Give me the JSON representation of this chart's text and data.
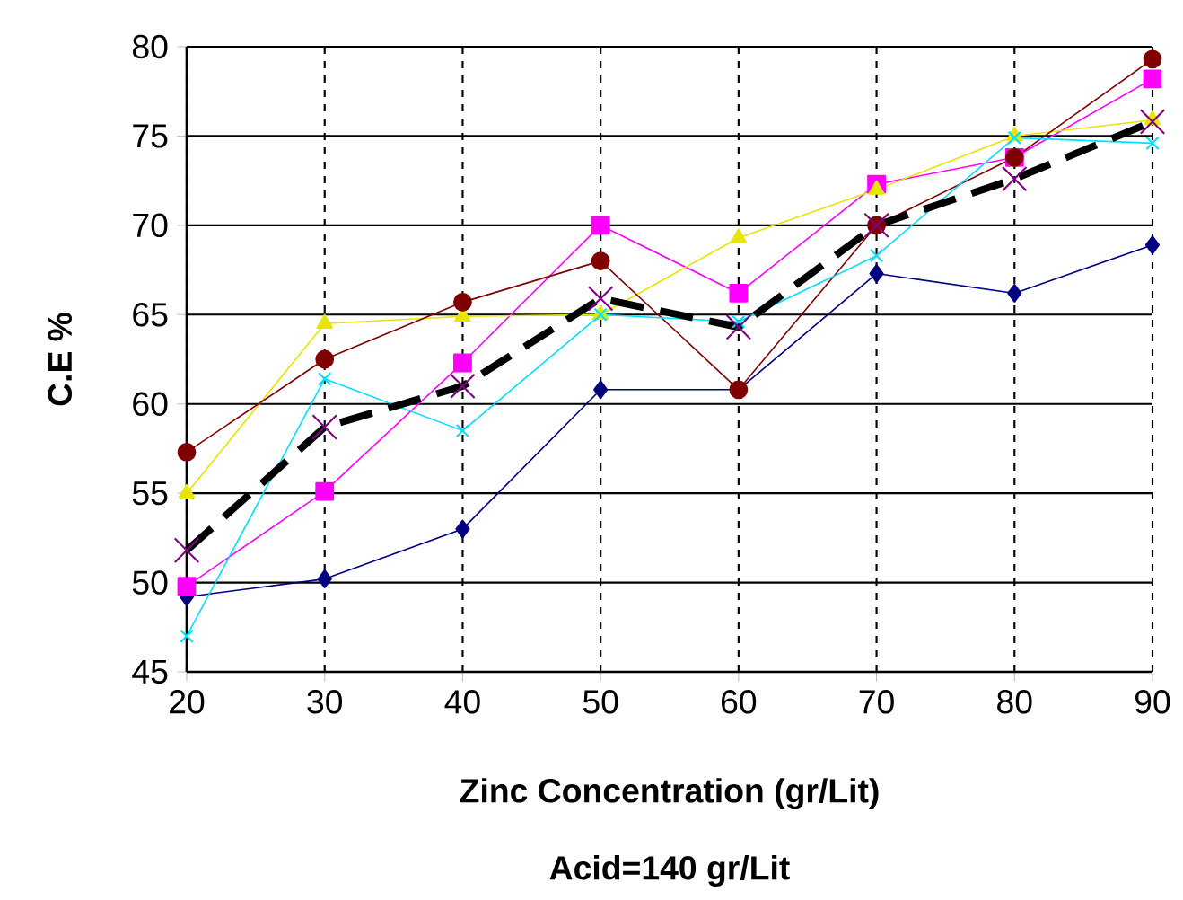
{
  "chart_data": {
    "type": "line",
    "xlabel": "Zinc Concentration (gr/Lit)",
    "ylabel": "C.E %",
    "annotations": [
      "Acid=140 gr/Lit"
    ],
    "x": [
      20,
      30,
      40,
      50,
      60,
      70,
      80,
      90
    ],
    "xlim": [
      20,
      90
    ],
    "xticks": [
      20,
      30,
      40,
      50,
      60,
      70,
      80,
      90
    ],
    "ylim": [
      45,
      80
    ],
    "yticks": [
      45,
      50,
      55,
      60,
      65,
      70,
      75,
      80
    ],
    "grid": true,
    "series": [
      {
        "color": "#000080",
        "marker": "diamond",
        "values": [
          49.2,
          50.2,
          53.0,
          60.8,
          60.8,
          67.3,
          66.2,
          68.9
        ]
      },
      {
        "color": "#ff00ff",
        "marker": "square",
        "values": [
          49.8,
          55.1,
          62.3,
          70.0,
          66.2,
          72.3,
          73.8,
          78.2
        ]
      },
      {
        "color": "#e6e600",
        "marker": "triangle",
        "values": [
          55.0,
          64.5,
          64.9,
          65.0,
          69.3,
          72.0,
          75.0,
          75.9
        ]
      },
      {
        "color": "#800000",
        "marker": "circle",
        "values": [
          57.3,
          62.5,
          65.7,
          68.0,
          60.8,
          70.0,
          73.8,
          79.3
        ]
      },
      {
        "color": "#00e0ff",
        "marker": "cross",
        "values": [
          47.0,
          61.4,
          58.5,
          65.0,
          64.6,
          68.3,
          74.9,
          74.6
        ]
      },
      {
        "type": "line",
        "color": "#000000",
        "marker": "none",
        "line_style": "dashed",
        "values": [
          51.8,
          58.7,
          61.0,
          65.9,
          64.3,
          70.0,
          72.6,
          75.8
        ]
      },
      {
        "type": "scatter",
        "color": "#800080",
        "marker": "cross",
        "values": [
          51.8,
          58.7,
          61.0,
          65.9,
          64.3,
          70.0,
          72.6,
          75.8
        ]
      }
    ]
  }
}
